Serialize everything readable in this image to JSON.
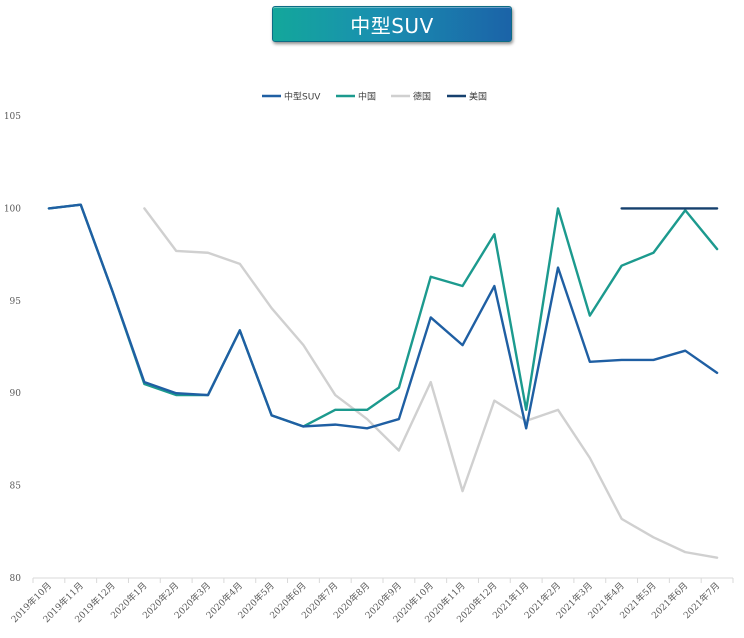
{
  "chart_data": {
    "type": "line",
    "title": "中型SUV",
    "xlabel": "",
    "ylabel": "",
    "ylim": [
      80,
      105
    ],
    "yticks": [
      80,
      85,
      90,
      95,
      100,
      105
    ],
    "grid": false,
    "legend_position": "top-center",
    "categories": [
      "2019年10月",
      "2019年11月",
      "2019年12月",
      "2020年1月",
      "2020年2月",
      "2020年3月",
      "2020年4月",
      "2020年5月",
      "2020年6月",
      "2020年7月",
      "2020年8月",
      "2020年9月",
      "2020年10月",
      "2020年11月",
      "2020年12月",
      "2021年1月",
      "2021年2月",
      "2021年3月",
      "2021年4月",
      "2021年5月",
      "2021年6月",
      "2021年7月"
    ],
    "series": [
      {
        "name": "中型SUV",
        "color": "#1f5fa3",
        "values": [
          100.0,
          100.2,
          95.5,
          90.6,
          90.0,
          89.9,
          93.4,
          88.8,
          88.2,
          88.3,
          88.1,
          88.6,
          94.1,
          92.6,
          95.8,
          88.1,
          96.8,
          91.7,
          91.8,
          91.8,
          92.3,
          91.1
        ]
      },
      {
        "name": "中国",
        "color": "#1c9a8e",
        "values": [
          100.0,
          100.2,
          95.5,
          90.5,
          89.9,
          89.9,
          93.4,
          88.8,
          88.2,
          89.1,
          89.1,
          90.3,
          96.3,
          95.8,
          98.6,
          89.1,
          100.0,
          94.2,
          96.9,
          97.6,
          99.9,
          97.8
        ]
      },
      {
        "name": "德国",
        "color": "#d0d0d0",
        "values": [
          null,
          null,
          null,
          100.0,
          97.7,
          97.6,
          97.0,
          94.6,
          92.6,
          89.9,
          88.6,
          86.9,
          90.6,
          84.7,
          89.6,
          88.5,
          89.1,
          86.5,
          83.2,
          82.2,
          81.4,
          81.1
        ]
      },
      {
        "name": "美国",
        "color": "#16406e",
        "values": [
          null,
          null,
          null,
          null,
          null,
          null,
          null,
          null,
          null,
          null,
          null,
          null,
          null,
          null,
          null,
          null,
          null,
          null,
          100.0,
          100.0,
          100.0,
          100.0
        ]
      }
    ]
  }
}
